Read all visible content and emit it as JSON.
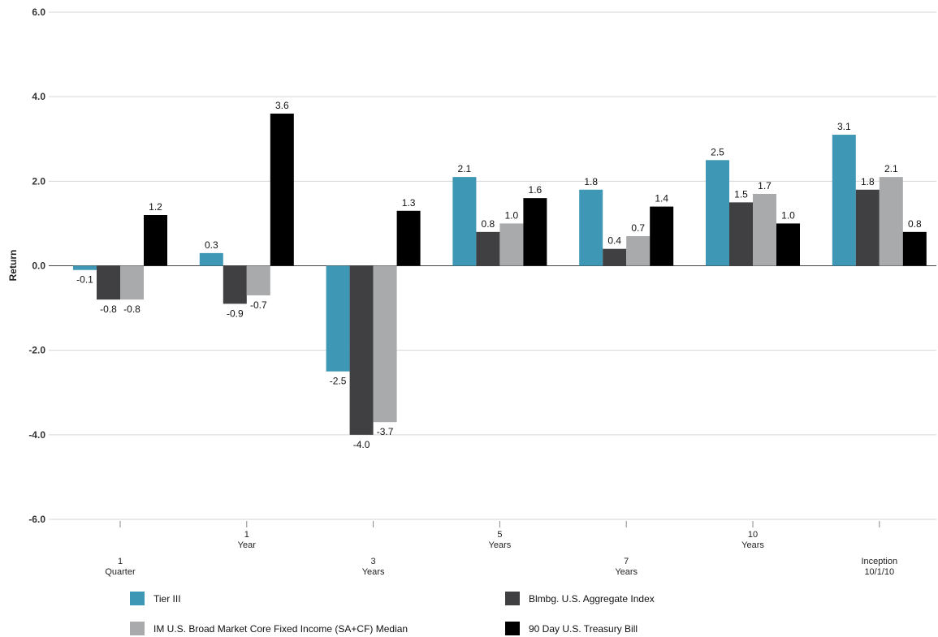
{
  "chart_data": {
    "type": "bar",
    "ylabel": "Return",
    "xlabel": "",
    "ylim": [
      -6.0,
      6.0
    ],
    "yticks": [
      "6.0",
      "4.0",
      "2.0",
      "0.0",
      "-2.0",
      "-4.0",
      "-6.0"
    ],
    "grid": true,
    "legend_position": "bottom",
    "categories": [
      [
        "1",
        "Quarter"
      ],
      [
        "1",
        "Year"
      ],
      [
        "3",
        "Years"
      ],
      [
        "5",
        "Years"
      ],
      [
        "7",
        "Years"
      ],
      [
        "10",
        "Years"
      ],
      [
        "Inception",
        "10/1/10"
      ]
    ],
    "series": [
      {
        "name": "Tier III",
        "color": "#3d97b5",
        "values": [
          -0.1,
          0.3,
          -2.5,
          2.1,
          1.8,
          2.5,
          3.1
        ],
        "labels": [
          "-0.1",
          "0.3",
          "-2.5",
          "2.1",
          "1.8",
          "2.5",
          "3.1"
        ]
      },
      {
        "name": "Blmbg. U.S. Aggregate Index",
        "color": "#404042",
        "values": [
          -0.8,
          -0.9,
          -4.0,
          0.8,
          0.4,
          1.5,
          1.8
        ],
        "labels": [
          "-0.8",
          "-0.9",
          "-4.0",
          "0.8",
          "0.4",
          "1.5",
          "1.8"
        ]
      },
      {
        "name": "IM U.S. Broad Market Core Fixed Income (SA+CF) Median",
        "color": "#a8aaab",
        "values": [
          -0.8,
          -0.7,
          -3.7,
          1.0,
          0.7,
          1.7,
          2.1
        ],
        "labels": [
          "-0.8",
          "-0.7",
          "-3.7",
          "1.0",
          "0.7",
          "1.7",
          "2.1"
        ]
      },
      {
        "name": "90 Day U.S. Treasury Bill",
        "color": "#000000",
        "values": [
          1.2,
          3.6,
          1.3,
          1.6,
          1.4,
          1.0,
          0.8
        ],
        "labels": [
          "1.2",
          "3.6",
          "1.3",
          "1.6",
          "1.4",
          "1.0",
          "0.8"
        ]
      }
    ]
  }
}
